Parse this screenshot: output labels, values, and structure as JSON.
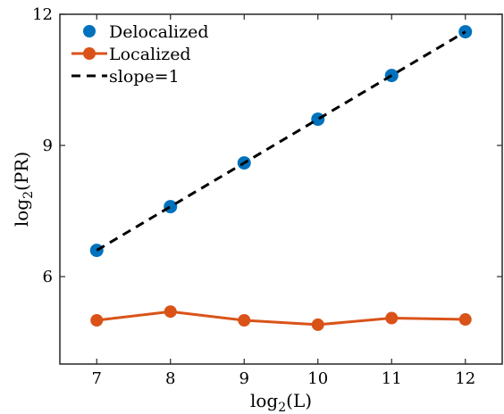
{
  "chart_data": {
    "type": "line",
    "xlabel": {
      "base": "log",
      "sub": "2",
      "arg": "(L)"
    },
    "ylabel": {
      "base": "log",
      "sub": "2",
      "arg": "(PR)"
    },
    "xlim": [
      6.5,
      12.5
    ],
    "ylim": [
      4.0,
      12.0
    ],
    "xticks": [
      7,
      8,
      9,
      10,
      11,
      12
    ],
    "yticks": [
      6,
      9,
      12
    ],
    "grid": false,
    "legend_position": "top-left",
    "series": [
      {
        "name": "Delocalized",
        "style": "markers",
        "color": "#0072BD",
        "x": [
          7,
          8,
          9,
          10,
          11,
          12
        ],
        "y": [
          6.6,
          7.6,
          8.6,
          9.6,
          10.6,
          11.6
        ]
      },
      {
        "name": "Localized",
        "style": "line-markers",
        "color": "#D95319",
        "x": [
          7,
          8,
          9,
          10,
          11,
          12
        ],
        "y": [
          5.0,
          5.2,
          5.0,
          4.9,
          5.05,
          5.02
        ]
      },
      {
        "name": "slope=1",
        "style": "dashed-line",
        "color": "#000000",
        "x": [
          7,
          12
        ],
        "y": [
          6.6,
          11.6
        ]
      }
    ]
  }
}
